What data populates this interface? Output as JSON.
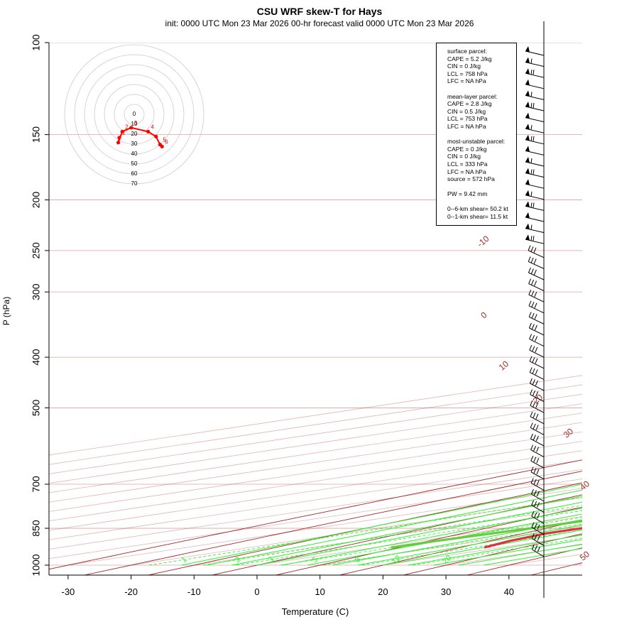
{
  "title": "CSU WRF skew-T for Hays",
  "subtitle": "init: 0000 UTC Mon 23 Mar 2026     00-hr forecast valid 0000 UTC Mon 23 Mar 2026",
  "info": {
    "surface": [
      "surface parcel:",
      "CAPE = 5.2 J/kg",
      "CIN = 0 J/kg",
      "LCL = 758 hPa",
      "LFC = NA hPa"
    ],
    "meanlayer": [
      "mean-layer parcel:",
      "CAPE = 2.8 J/kg",
      "CIN = 0.5 J/kg",
      "LCL = 753 hPa",
      "LFC = NA hPa"
    ],
    "mostunstable": [
      "most-unstable parcel:",
      "CAPE = 0 J/kg",
      "CIN = 0 J/kg",
      "LCL = 333 hPa",
      "LFC = NA hPa",
      "source = 572 hPa"
    ],
    "pw": "PW =  9.42 mm",
    "shear": [
      "0--6-km shear= 50.2 kt",
      "0--1-km shear= 11.5 kt"
    ]
  },
  "colors": {
    "temperature": "#dd3344",
    "dewpoint": "#66cc44",
    "isotherm": "#a52a2a",
    "dry_adiabat": "#a52a2a",
    "moist_adiabat": "#33ee33",
    "mixing_ratio": "#33ee33",
    "isobar": "#dda0a0",
    "hodograph": "#ff0000"
  },
  "chart_data": {
    "type": "skew-t",
    "xlabel": "Temperature (C)",
    "ylabel": "P (hPa)",
    "xlim": [
      -33,
      45
    ],
    "ylim": [
      1000,
      100
    ],
    "y_scale": "log",
    "x_ticks": [
      -30,
      -20,
      -10,
      0,
      10,
      20,
      30,
      40
    ],
    "pressure_ticks": [
      100,
      150,
      200,
      250,
      300,
      400,
      500,
      700,
      850,
      1000
    ],
    "isotherm_labels": [
      -10,
      0,
      10,
      20,
      30,
      40,
      50
    ],
    "mixing_ratio_labels": [
      "1",
      "2",
      "3",
      "5",
      "8",
      "12",
      "20"
    ],
    "temperature": [
      {
        "p": 925,
        "t": 17.3
      },
      {
        "p": 900,
        "t": 14.5
      },
      {
        "p": 870,
        "t": 12.2
      },
      {
        "p": 850,
        "t": 12.3
      },
      {
        "p": 820,
        "t": 14.0
      },
      {
        "p": 790,
        "t": 16.5
      },
      {
        "p": 760,
        "t": 17.8
      },
      {
        "p": 720,
        "t": 17.4
      },
      {
        "p": 700,
        "t": 16.8
      },
      {
        "p": 650,
        "t": 14.2
      },
      {
        "p": 600,
        "t": 10.5
      },
      {
        "p": 550,
        "t": 5.2
      },
      {
        "p": 500,
        "t": -0.8
      },
      {
        "p": 450,
        "t": -6.0
      },
      {
        "p": 400,
        "t": -10.6
      },
      {
        "p": 350,
        "t": -16.2
      },
      {
        "p": 300,
        "t": -24.3
      },
      {
        "p": 250,
        "t": -34.1
      },
      {
        "p": 220,
        "t": -40.7
      },
      {
        "p": 200,
        "t": -44.1
      },
      {
        "p": 180,
        "t": -45.4
      },
      {
        "p": 150,
        "t": -46.9
      },
      {
        "p": 130,
        "t": -53.9
      },
      {
        "p": 110,
        "t": -60.8
      },
      {
        "p": 100,
        "t": -65.4
      }
    ],
    "dewpoint": [
      {
        "p": 925,
        "t": 2.5
      },
      {
        "p": 900,
        "t": 2.7
      },
      {
        "p": 850,
        "t": 4.2
      },
      {
        "p": 800,
        "t": 5.4
      },
      {
        "p": 780,
        "t": 4.3
      },
      {
        "p": 760,
        "t": -3.2
      },
      {
        "p": 700,
        "t": -12.9
      },
      {
        "p": 670,
        "t": -19.0
      },
      {
        "p": 640,
        "t": -22.3
      },
      {
        "p": 600,
        "t": -25.8
      },
      {
        "p": 550,
        "t": -30.7
      },
      {
        "p": 500,
        "t": -36.0
      },
      {
        "p": 480,
        "t": -37.2
      },
      {
        "p": 450,
        "t": -31.2
      },
      {
        "p": 430,
        "t": -20.8
      },
      {
        "p": 400,
        "t": -18.2
      },
      {
        "p": 370,
        "t": -18.4
      },
      {
        "p": 350,
        "t": -20.5
      },
      {
        "p": 320,
        "t": -24.5
      },
      {
        "p": 300,
        "t": -28.7
      },
      {
        "p": 270,
        "t": -35.2
      },
      {
        "p": 250,
        "t": -41.0
      },
      {
        "p": 220,
        "t": -50.3
      },
      {
        "p": 200,
        "t": -56.0
      },
      {
        "p": 180,
        "t": -59.0
      }
    ],
    "hodograph": {
      "rings": [
        "0",
        "10",
        "20",
        "30",
        "40",
        "50",
        "60",
        "70"
      ],
      "point_labels": [
        "1",
        "2",
        "3",
        "4",
        "5",
        "6"
      ],
      "points": [
        {
          "u": -15,
          "v": 2
        },
        {
          "u": -16,
          "v": 7
        },
        {
          "u": -12,
          "v": -4
        },
        {
          "u": -3,
          "v": -8
        },
        {
          "u": 14,
          "v": -4
        },
        {
          "u": 22,
          "v": 1
        },
        {
          "u": 26,
          "v": 9
        },
        {
          "u": 28,
          "v": 11
        }
      ]
    }
  }
}
